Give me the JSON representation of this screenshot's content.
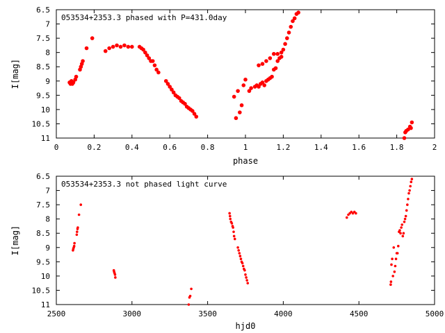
{
  "chart_data": [
    {
      "type": "scatter",
      "title": "053534+2353.3 phased with P=431.0day",
      "xlabel": "phase",
      "ylabel": "I[mag]",
      "xlim": [
        0,
        2
      ],
      "ylim": [
        6.5,
        11
      ],
      "y_inverted": true,
      "x_ticks": [
        "0",
        "0.2",
        "0.4",
        "0.6",
        "0.8",
        "1",
        "1.2",
        "1.4",
        "1.6",
        "1.8",
        "2"
      ],
      "y_ticks": [
        "6.5",
        "7",
        "7.5",
        "8",
        "8.5",
        "9",
        "9.5",
        "10",
        "10.5",
        "11"
      ],
      "grid": false,
      "marker_color": "#ff0000",
      "series": [
        {
          "points": [
            [
              0.07,
              9.05
            ],
            [
              0.075,
              9.1
            ],
            [
              0.08,
              9.0
            ],
            [
              0.085,
              9.1
            ],
            [
              0.09,
              9.05
            ],
            [
              0.1,
              8.95
            ],
            [
              0.105,
              8.85
            ],
            [
              0.125,
              8.6
            ],
            [
              0.13,
              8.5
            ],
            [
              0.135,
              8.4
            ],
            [
              0.14,
              8.3
            ],
            [
              0.16,
              7.85
            ],
            [
              0.19,
              7.5
            ],
            [
              0.26,
              7.95
            ],
            [
              0.28,
              7.85
            ],
            [
              0.3,
              7.8
            ],
            [
              0.32,
              7.75
            ],
            [
              0.34,
              7.8
            ],
            [
              0.36,
              7.75
            ],
            [
              0.38,
              7.8
            ],
            [
              0.4,
              7.8
            ],
            [
              0.44,
              7.8
            ],
            [
              0.45,
              7.85
            ],
            [
              0.46,
              7.9
            ],
            [
              0.47,
              8.0
            ],
            [
              0.48,
              8.1
            ],
            [
              0.49,
              8.2
            ],
            [
              0.5,
              8.3
            ],
            [
              0.51,
              8.3
            ],
            [
              0.52,
              8.45
            ],
            [
              0.53,
              8.6
            ],
            [
              0.54,
              8.7
            ],
            [
              0.58,
              9.0
            ],
            [
              0.59,
              9.1
            ],
            [
              0.6,
              9.2
            ],
            [
              0.61,
              9.3
            ],
            [
              0.62,
              9.4
            ],
            [
              0.63,
              9.5
            ],
            [
              0.64,
              9.55
            ],
            [
              0.65,
              9.6
            ],
            [
              0.66,
              9.7
            ],
            [
              0.67,
              9.75
            ],
            [
              0.68,
              9.8
            ],
            [
              0.69,
              9.9
            ],
            [
              0.7,
              9.95
            ],
            [
              0.71,
              10.0
            ],
            [
              0.72,
              10.05
            ],
            [
              0.73,
              10.15
            ],
            [
              0.74,
              10.25
            ],
            [
              0.94,
              9.55
            ],
            [
              0.95,
              10.3
            ],
            [
              0.96,
              9.35
            ],
            [
              0.97,
              10.1
            ],
            [
              0.98,
              9.85
            ],
            [
              0.99,
              9.15
            ],
            [
              1.0,
              8.95
            ],
            [
              1.02,
              9.35
            ],
            [
              1.03,
              9.25
            ],
            [
              1.05,
              9.2
            ],
            [
              1.06,
              9.15
            ],
            [
              1.07,
              9.2
            ],
            [
              1.08,
              9.1
            ],
            [
              1.09,
              9.05
            ],
            [
              1.1,
              9.15
            ],
            [
              1.11,
              9.0
            ],
            [
              1.12,
              8.95
            ],
            [
              1.13,
              8.9
            ],
            [
              1.14,
              8.85
            ],
            [
              1.15,
              8.6
            ],
            [
              1.16,
              8.55
            ],
            [
              1.17,
              8.3
            ],
            [
              1.18,
              8.2
            ],
            [
              1.19,
              8.15
            ],
            [
              1.2,
              7.9
            ],
            [
              1.21,
              7.7
            ],
            [
              1.22,
              7.5
            ],
            [
              1.23,
              7.3
            ],
            [
              1.24,
              7.1
            ],
            [
              1.25,
              6.9
            ],
            [
              1.26,
              6.8
            ],
            [
              1.27,
              6.65
            ],
            [
              1.28,
              6.6
            ],
            [
              1.07,
              8.45
            ],
            [
              1.09,
              8.4
            ],
            [
              1.11,
              8.3
            ],
            [
              1.13,
              8.2
            ],
            [
              1.15,
              8.05
            ],
            [
              1.17,
              8.05
            ],
            [
              1.19,
              8.0
            ],
            [
              1.84,
              11.0
            ],
            [
              1.845,
              10.8
            ],
            [
              1.85,
              10.75
            ],
            [
              1.86,
              10.7
            ],
            [
              1.87,
              10.6
            ],
            [
              1.875,
              10.65
            ],
            [
              1.88,
              10.45
            ]
          ]
        }
      ]
    },
    {
      "type": "scatter",
      "title": "053534+2353.3 not phased light curve",
      "xlabel": "hjd0",
      "ylabel": "I[mag]",
      "xlim": [
        2500,
        5000
      ],
      "ylim": [
        6.5,
        11
      ],
      "y_inverted": true,
      "x_ticks": [
        "2500",
        "3000",
        "3500",
        "4000",
        "4500",
        "5000"
      ],
      "y_ticks": [
        "6.5",
        "7",
        "7.5",
        "8",
        "8.5",
        "9",
        "9.5",
        "10",
        "10.5",
        "11"
      ],
      "grid": false,
      "marker_color": "#ff0000",
      "series": [
        {
          "points": [
            [
              2610,
              9.1
            ],
            [
              2612,
              9.05
            ],
            [
              2615,
              9.0
            ],
            [
              2618,
              8.95
            ],
            [
              2620,
              8.85
            ],
            [
              2635,
              8.55
            ],
            [
              2637,
              8.45
            ],
            [
              2640,
              8.35
            ],
            [
              2642,
              8.3
            ],
            [
              2650,
              7.85
            ],
            [
              2662,
              7.5
            ],
            [
              2880,
              9.8
            ],
            [
              2882,
              9.85
            ],
            [
              2885,
              9.9
            ],
            [
              2888,
              9.95
            ],
            [
              2890,
              10.05
            ],
            [
              3375,
              11.0
            ],
            [
              3380,
              10.75
            ],
            [
              3385,
              10.7
            ],
            [
              3392,
              10.45
            ],
            [
              3645,
              7.8
            ],
            [
              3648,
              7.9
            ],
            [
              3650,
              8.0
            ],
            [
              3655,
              8.1
            ],
            [
              3660,
              8.15
            ],
            [
              3665,
              8.25
            ],
            [
              3668,
              8.3
            ],
            [
              3672,
              8.45
            ],
            [
              3675,
              8.6
            ],
            [
              3680,
              8.7
            ],
            [
              3700,
              9.0
            ],
            [
              3705,
              9.1
            ],
            [
              3710,
              9.2
            ],
            [
              3715,
              9.3
            ],
            [
              3720,
              9.4
            ],
            [
              3725,
              9.5
            ],
            [
              3730,
              9.55
            ],
            [
              3735,
              9.65
            ],
            [
              3740,
              9.75
            ],
            [
              3745,
              9.8
            ],
            [
              3750,
              9.95
            ],
            [
              3755,
              10.05
            ],
            [
              3760,
              10.15
            ],
            [
              3765,
              10.25
            ],
            [
              4420,
              7.95
            ],
            [
              4430,
              7.85
            ],
            [
              4440,
              7.8
            ],
            [
              4450,
              7.75
            ],
            [
              4460,
              7.8
            ],
            [
              4470,
              7.75
            ],
            [
              4480,
              7.8
            ],
            [
              4710,
              10.3
            ],
            [
              4712,
              10.2
            ],
            [
              4715,
              9.6
            ],
            [
              4720,
              9.4
            ],
            [
              4725,
              10.0
            ],
            [
              4730,
              9.0
            ],
            [
              4735,
              9.85
            ],
            [
              4740,
              9.65
            ],
            [
              4745,
              9.4
            ],
            [
              4750,
              9.2
            ],
            [
              4755,
              9.2
            ],
            [
              4760,
              8.95
            ],
            [
              4765,
              8.45
            ],
            [
              4770,
              8.4
            ],
            [
              4775,
              8.5
            ],
            [
              4780,
              8.3
            ],
            [
              4785,
              8.2
            ],
            [
              4790,
              8.6
            ],
            [
              4795,
              8.5
            ],
            [
              4800,
              8.1
            ],
            [
              4805,
              8.0
            ],
            [
              4810,
              7.9
            ],
            [
              4815,
              7.7
            ],
            [
              4820,
              7.5
            ],
            [
              4825,
              7.3
            ],
            [
              4830,
              7.1
            ],
            [
              4835,
              7.0
            ],
            [
              4840,
              6.85
            ],
            [
              4845,
              6.7
            ],
            [
              4850,
              6.6
            ]
          ]
        }
      ]
    }
  ]
}
